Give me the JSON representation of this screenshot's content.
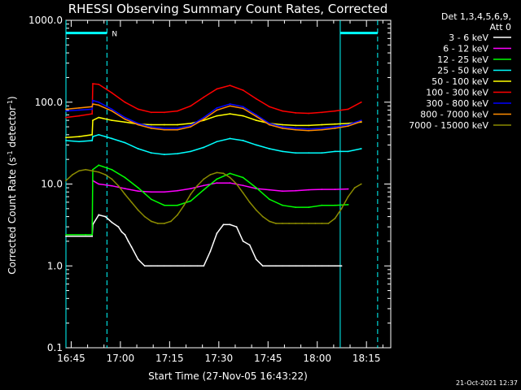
{
  "chart_data": {
    "type": "line",
    "title": "RHESSI Observing Summary Count Rates, Corrected",
    "xlabel": "Start Time (27-Nov-05 16:43:22)",
    "ylabel": "Corrected Count Rate (s",
    "ylabel_sup1": "-1",
    "ylabel_mid": " detector",
    "ylabel_sup2": "-1",
    "ylabel_end": ")",
    "yscale": "log",
    "ylim": [
      0.1,
      1000
    ],
    "xlim_minutes": [
      0,
      99
    ],
    "x_start": "16:43:22",
    "grid": false,
    "legend_placement": "top-right",
    "legend_header": [
      "Det 1,3,4,5,6,9,",
      "Att 0"
    ],
    "x_ticks": [
      {
        "label": "16:45",
        "t": 1.6
      },
      {
        "label": "17:00",
        "t": 16.6
      },
      {
        "label": "17:15",
        "t": 31.6
      },
      {
        "label": "17:30",
        "t": 46.6
      },
      {
        "label": "17:45",
        "t": 61.6
      },
      {
        "label": "18:00",
        "t": 76.6
      },
      {
        "label": "18:15",
        "t": 91.6
      }
    ],
    "y_ticks": [
      {
        "label": "1000.0",
        "v": 1000
      },
      {
        "label": "100.0",
        "v": 100
      },
      {
        "label": "10.0",
        "v": 10
      },
      {
        "label": "1.0",
        "v": 1
      },
      {
        "label": "0.1",
        "v": 0.1
      }
    ],
    "series": [
      {
        "name": "3 - 6 keV",
        "color": "#ffffff",
        "x": [
          0,
          8,
          8.2,
          10,
          12,
          14,
          16,
          17,
          18,
          19,
          20,
          22,
          24,
          26,
          28,
          30,
          32,
          34,
          36,
          38,
          40,
          42,
          44,
          46,
          48,
          50,
          52,
          54,
          56,
          58,
          60,
          62,
          64,
          66,
          68,
          70,
          72,
          74,
          76,
          78,
          80,
          82,
          84
        ],
        "y": [
          2.3,
          2.3,
          3.2,
          4.2,
          4.0,
          3.4,
          3.0,
          2.6,
          2.4,
          2.0,
          1.7,
          1.2,
          1.0,
          1.0,
          1.0,
          1.0,
          1.0,
          1.0,
          1.0,
          1.0,
          1.0,
          1.0,
          1.5,
          2.5,
          3.2,
          3.2,
          3.0,
          2.0,
          1.8,
          1.2,
          1.0,
          1.0,
          1.0,
          1.0,
          1.0,
          1.0,
          1.0,
          1.0,
          1.0,
          1.0,
          1.0,
          1.0,
          1.0
        ]
      },
      {
        "name": "6 - 12 keV",
        "color": "#ff00ff",
        "x": [
          8.2,
          10,
          14,
          18,
          22,
          26,
          30,
          34,
          38,
          42,
          46,
          50,
          54,
          58,
          62,
          66,
          70,
          74,
          78,
          82,
          86
        ],
        "y": [
          11,
          10,
          9.5,
          8.8,
          8.2,
          8.0,
          8.0,
          8.3,
          8.8,
          9.6,
          10.3,
          10.3,
          9.6,
          8.8,
          8.5,
          8.2,
          8.3,
          8.5,
          8.6,
          8.6,
          8.7
        ]
      },
      {
        "name": "12 - 25 keV",
        "color": "#00ff00",
        "x": [
          0,
          6,
          8,
          8.2,
          10,
          14,
          18,
          22,
          26,
          30,
          34,
          38,
          42,
          46,
          50,
          54,
          58,
          62,
          66,
          70,
          74,
          78,
          82,
          86
        ],
        "y": [
          2.4,
          2.4,
          2.4,
          15,
          17,
          15,
          12,
          9,
          6.5,
          5.5,
          5.5,
          6.2,
          8.5,
          11.5,
          13.5,
          12,
          9,
          6.5,
          5.5,
          5.2,
          5.2,
          5.5,
          5.5,
          5.6
        ]
      },
      {
        "name": "25 - 50 keV",
        "color": "#00ffff",
        "x": [
          0,
          4,
          8,
          8.2,
          10,
          14,
          18,
          22,
          26,
          30,
          34,
          38,
          42,
          46,
          50,
          54,
          58,
          62,
          66,
          70,
          74,
          78,
          82,
          86,
          90
        ],
        "y": [
          34,
          33,
          34,
          38,
          40,
          36,
          32,
          27,
          24,
          23,
          23.5,
          25,
          28,
          33,
          36,
          34,
          30,
          27,
          25,
          24,
          24,
          24,
          25,
          25,
          27
        ]
      },
      {
        "name": "50 - 100 keV",
        "color": "#ffff00",
        "x": [
          0,
          4,
          8,
          8.2,
          10,
          14,
          18,
          22,
          26,
          30,
          34,
          38,
          42,
          46,
          50,
          54,
          58,
          62,
          66,
          70,
          74,
          78,
          82,
          86,
          90
        ],
        "y": [
          37,
          38,
          40,
          60,
          65,
          60,
          57,
          54,
          53,
          53,
          53,
          55,
          60,
          68,
          72,
          68,
          60,
          55,
          53,
          52,
          52,
          53,
          54,
          55,
          57
        ]
      },
      {
        "name": "100 - 300 keV",
        "color": "#ff0000",
        "x": [
          0,
          4,
          8,
          8.2,
          10,
          14,
          18,
          22,
          26,
          30,
          34,
          38,
          42,
          46,
          50,
          54,
          58,
          62,
          66,
          70,
          74,
          78,
          82,
          86,
          90
        ],
        "y": [
          65,
          68,
          72,
          168,
          165,
          130,
          100,
          82,
          75,
          75,
          78,
          90,
          115,
          145,
          160,
          140,
          110,
          88,
          78,
          74,
          73,
          75,
          78,
          82,
          100
        ]
      },
      {
        "name": "300 - 800 keV",
        "color": "#0000ff",
        "x": [
          0,
          4,
          8,
          8.2,
          10,
          14,
          18,
          22,
          26,
          30,
          34,
          38,
          42,
          46,
          50,
          54,
          58,
          62,
          66,
          70,
          74,
          78,
          82,
          86,
          90
        ],
        "y": [
          78,
          80,
          82,
          105,
          100,
          82,
          65,
          55,
          50,
          48,
          48,
          52,
          65,
          85,
          95,
          88,
          70,
          55,
          50,
          48,
          47,
          48,
          50,
          53,
          60
        ]
      },
      {
        "name": "800 - 7000 keV",
        "color": "#ff8c00",
        "x": [
          0,
          4,
          8,
          8.2,
          10,
          14,
          18,
          22,
          26,
          30,
          34,
          38,
          42,
          46,
          50,
          54,
          58,
          62,
          66,
          70,
          74,
          78,
          82,
          86,
          90
        ],
        "y": [
          82,
          85,
          88,
          95,
          92,
          78,
          62,
          53,
          48,
          46,
          46,
          50,
          62,
          80,
          90,
          84,
          67,
          53,
          48,
          46,
          45,
          46,
          48,
          51,
          58
        ]
      },
      {
        "name": "7000 - 15000 keV",
        "color": "#8b8b00",
        "x": [
          0,
          2,
          4,
          6,
          8,
          10,
          12,
          14,
          16,
          18,
          20,
          22,
          24,
          26,
          28,
          30,
          32,
          34,
          36,
          38,
          40,
          42,
          44,
          46,
          48,
          50,
          52,
          54,
          56,
          58,
          60,
          62,
          64,
          66,
          68,
          70,
          72,
          74,
          76,
          78,
          80,
          82,
          84,
          86,
          88,
          90
        ],
        "y": [
          11,
          13,
          14.5,
          15,
          14.5,
          14,
          13,
          11.5,
          9.5,
          7.5,
          6,
          4.8,
          4,
          3.5,
          3.3,
          3.3,
          3.5,
          4.2,
          5.5,
          7.5,
          9.5,
          11.5,
          13,
          13.8,
          13.5,
          12,
          10,
          7.8,
          6,
          4.8,
          4,
          3.5,
          3.3,
          3.3,
          3.3,
          3.3,
          3.3,
          3.3,
          3.3,
          3.3,
          3.3,
          3.8,
          5,
          7,
          9,
          10
        ]
      }
    ],
    "markers": {
      "n_label": "N",
      "segments": [
        {
          "label": "",
          "t0": 0,
          "t1": 12.5,
          "level": 700
        },
        {
          "label": "",
          "t0": 83.6,
          "t1": 95,
          "level": 700
        }
      ],
      "solid_vlines": [
        0,
        83.6
      ],
      "dashed_vlines": [
        12.5,
        95
      ]
    }
  },
  "footer": {
    "timestamp": "21-Oct-2021 12:37"
  },
  "colors": {
    "background": "#000000",
    "axes": "#ffffff",
    "marker": "#00ffff"
  }
}
